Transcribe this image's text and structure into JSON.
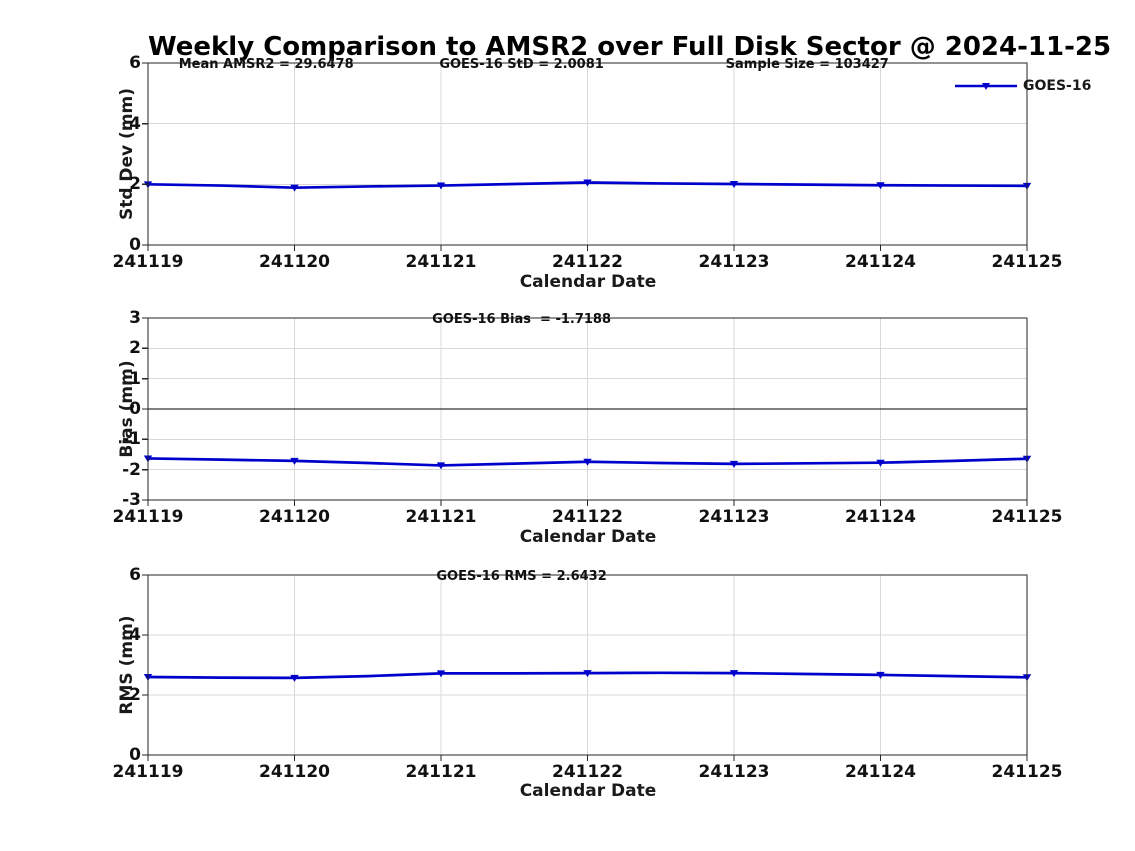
{
  "page": {
    "title": "Weekly Comparison to AMSR2 over Full Disk Sector @ 2024-11-25"
  },
  "legend": {
    "label": "GOES-16"
  },
  "stats": {
    "mean_amsr2": 29.6478,
    "goes16_std": 2.0081,
    "sample_size": 103427,
    "goes16_bias": -1.7188,
    "goes16_rms": 2.6432
  },
  "colors": {
    "line": "#0000CC",
    "marker": "#0000CC",
    "grid": "#D8D8D8",
    "spine": "#262626",
    "zero_line": "#000000",
    "text": "#1A1A1A",
    "background": "#FFFFFF"
  },
  "chart_data": [
    {
      "id": "stddev",
      "type": "line",
      "ylabel": "Std Dev (mm)",
      "xlabel": "Calendar Date",
      "legend_position": "upper-right-outside",
      "grid": true,
      "annotations": [
        {
          "text": "Mean AMSR2 = 29.6478",
          "pos": "left"
        },
        {
          "text": "GOES-16 StD = 2.0081",
          "pos": "center"
        },
        {
          "text": "Sample Size = 103427",
          "pos": "right"
        }
      ],
      "x_tick_labels": [
        "241119",
        "241120",
        "241121",
        "241122",
        "241124",
        "241125"
      ],
      "categories": [
        "241119",
        "241120",
        "241121",
        "241122",
        "241123",
        "241124",
        "241125"
      ],
      "ylim": [
        0,
        6
      ],
      "yticks": [
        0,
        2,
        4,
        6
      ],
      "series": [
        {
          "name": "GOES-16",
          "x": [
            0,
            0.5,
            1,
            1.5,
            2,
            2.5,
            3,
            3.5,
            4,
            4.5,
            5,
            5.5,
            6
          ],
          "y": [
            2.0,
            1.96,
            1.89,
            1.93,
            1.96,
            2.01,
            2.06,
            2.03,
            2.01,
            1.99,
            1.97,
            1.96,
            1.95
          ],
          "daily_values": [
            2.0,
            1.89,
            1.96,
            2.06,
            2.01,
            1.97,
            1.95
          ]
        }
      ]
    },
    {
      "id": "bias",
      "type": "line",
      "ylabel": "Bias (mm)",
      "xlabel": "Calendar Date",
      "grid": true,
      "zero_line": true,
      "annotations": [
        {
          "text": "GOES-16 Bias  = -1.7188",
          "pos": "center"
        }
      ],
      "categories": [
        "241119",
        "241120",
        "241121",
        "241122",
        "241123",
        "241124",
        "241125"
      ],
      "ylim": [
        -3,
        3
      ],
      "yticks": [
        -3,
        -2,
        -1,
        0,
        1,
        2,
        3
      ],
      "series": [
        {
          "name": "GOES-16",
          "x": [
            0,
            0.5,
            1,
            1.5,
            2,
            2.5,
            3,
            3.5,
            4,
            4.5,
            5,
            5.5,
            6
          ],
          "y": [
            -1.63,
            -1.67,
            -1.71,
            -1.78,
            -1.86,
            -1.8,
            -1.74,
            -1.78,
            -1.81,
            -1.79,
            -1.77,
            -1.71,
            -1.64
          ],
          "daily_values": [
            -1.63,
            -1.71,
            -1.86,
            -1.74,
            -1.81,
            -1.77,
            -1.64
          ]
        }
      ]
    },
    {
      "id": "rms",
      "type": "line",
      "ylabel": "RMS (mm)",
      "xlabel": "Calendar Date",
      "grid": true,
      "annotations": [
        {
          "text": "GOES-16 RMS = 2.6432",
          "pos": "center"
        }
      ],
      "categories": [
        "241119",
        "241120",
        "241121",
        "241122",
        "241123",
        "241124",
        "241125"
      ],
      "ylim": [
        0,
        6
      ],
      "yticks": [
        0,
        2,
        4,
        6
      ],
      "series": [
        {
          "name": "GOES-16",
          "x": [
            0,
            0.5,
            1,
            1.5,
            2,
            2.5,
            3,
            3.5,
            4,
            4.5,
            5,
            5.5,
            6
          ],
          "y": [
            2.6,
            2.58,
            2.57,
            2.63,
            2.72,
            2.72,
            2.73,
            2.74,
            2.73,
            2.7,
            2.67,
            2.63,
            2.59
          ],
          "daily_values": [
            2.6,
            2.57,
            2.72,
            2.73,
            2.73,
            2.67,
            2.59
          ]
        }
      ]
    }
  ]
}
